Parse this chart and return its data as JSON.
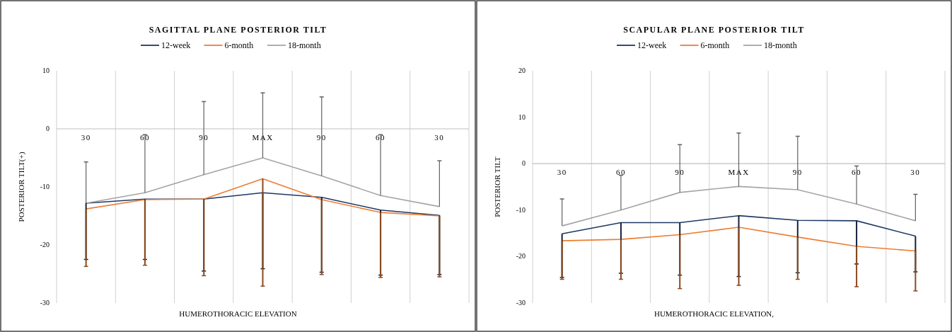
{
  "chart_data": [
    {
      "type": "line",
      "title": "SAGITTAL PLANE POSTERIOR TILT",
      "xlabel": "HUMEROTHORACIC ELEVATION",
      "ylabel": "POSTERIOR TILT(+)",
      "categories": [
        "30",
        "60",
        "90",
        "MAX",
        "90",
        "60",
        "30"
      ],
      "series": [
        {
          "name": "12-week",
          "color": "#1f3864",
          "values": [
            -12.8,
            -12.1,
            -12.1,
            -11.0,
            -11.8,
            -14.0,
            -14.9
          ],
          "errors": [
            [
              -22.5,
              -12.8
            ],
            [
              -22.5,
              -12.1
            ],
            [
              -24.5,
              -12.1
            ],
            [
              -24.1,
              -11.0
            ],
            [
              -24.7,
              -11.8
            ],
            [
              -25.2,
              -14.0
            ],
            [
              -25.1,
              -14.9
            ]
          ]
        },
        {
          "name": "6-month",
          "color": "#ed7d31",
          "values": [
            -13.8,
            -12.2,
            -12.1,
            -8.6,
            -12.2,
            -14.4,
            -15.0
          ],
          "errors": [
            [
              -23.7,
              -13.8
            ],
            [
              -23.5,
              -12.2
            ],
            [
              -25.3,
              -12.1
            ],
            [
              -27.1,
              -8.6
            ],
            [
              -25.1,
              -12.2
            ],
            [
              -25.6,
              -14.4
            ],
            [
              -25.5,
              -15.0
            ]
          ]
        },
        {
          "name": "18-month",
          "color": "#a5a5a5",
          "values": [
            -12.8,
            -11.0,
            -7.9,
            -5.0,
            -8.1,
            -11.5,
            -13.4
          ],
          "errors": [
            [
              -12.8,
              -5.7
            ],
            [
              -11.0,
              -1.0
            ],
            [
              -7.9,
              4.7
            ],
            [
              -5.0,
              6.2
            ],
            [
              -8.1,
              5.5
            ],
            [
              -11.5,
              -1.0
            ],
            [
              -13.4,
              -5.5
            ]
          ]
        }
      ],
      "ylim": [
        -30,
        10
      ],
      "yticks": [
        -30,
        -20,
        -10,
        0,
        10
      ],
      "grid": "x",
      "legend": "top",
      "marker": "none"
    },
    {
      "type": "line",
      "title": "SCAPULAR PLANE POSTERIOR TILT",
      "xlabel": "HUMEROTHORACIC ELEVATION,",
      "ylabel": "POSTERIOR TILT",
      "categories": [
        "30",
        "60",
        "90",
        "MAX",
        "90",
        "60",
        "30"
      ],
      "series": [
        {
          "name": "12-week",
          "color": "#1f3864",
          "values": [
            -15.1,
            -12.7,
            -12.7,
            -11.2,
            -12.2,
            -12.3,
            -15.6
          ],
          "errors": [
            [
              -24.5,
              -15.1
            ],
            [
              -23.6,
              -12.7
            ],
            [
              -24.0,
              -12.7
            ],
            [
              -24.3,
              -11.2
            ],
            [
              -23.5,
              -12.2
            ],
            [
              -21.6,
              -12.3
            ],
            [
              -23.3,
              -15.6
            ]
          ]
        },
        {
          "name": "6-month",
          "color": "#ed7d31",
          "values": [
            -16.6,
            -16.3,
            -15.3,
            -13.7,
            -15.8,
            -17.8,
            -18.8
          ],
          "errors": [
            [
              -24.9,
              -16.6
            ],
            [
              -24.9,
              -16.3
            ],
            [
              -26.9,
              -15.3
            ],
            [
              -26.2,
              -13.7
            ],
            [
              -24.9,
              -15.8
            ],
            [
              -26.5,
              -17.8
            ],
            [
              -27.4,
              -18.8
            ]
          ]
        },
        {
          "name": "18-month",
          "color": "#a5a5a5",
          "values": [
            -13.4,
            -10.0,
            -6.2,
            -4.9,
            -5.6,
            -8.7,
            -12.3
          ],
          "errors": [
            [
              -13.4,
              -7.6
            ],
            [
              -10.0,
              -2.5
            ],
            [
              -6.2,
              4.1
            ],
            [
              -4.9,
              6.6
            ],
            [
              -5.6,
              5.9
            ],
            [
              -8.7,
              -0.5
            ],
            [
              -12.3,
              -6.6
            ]
          ]
        }
      ],
      "ylim": [
        -30,
        20
      ],
      "yticks": [
        -30,
        -20,
        -10,
        0,
        10,
        20
      ],
      "grid": "x",
      "legend": "top",
      "marker": "none"
    }
  ]
}
